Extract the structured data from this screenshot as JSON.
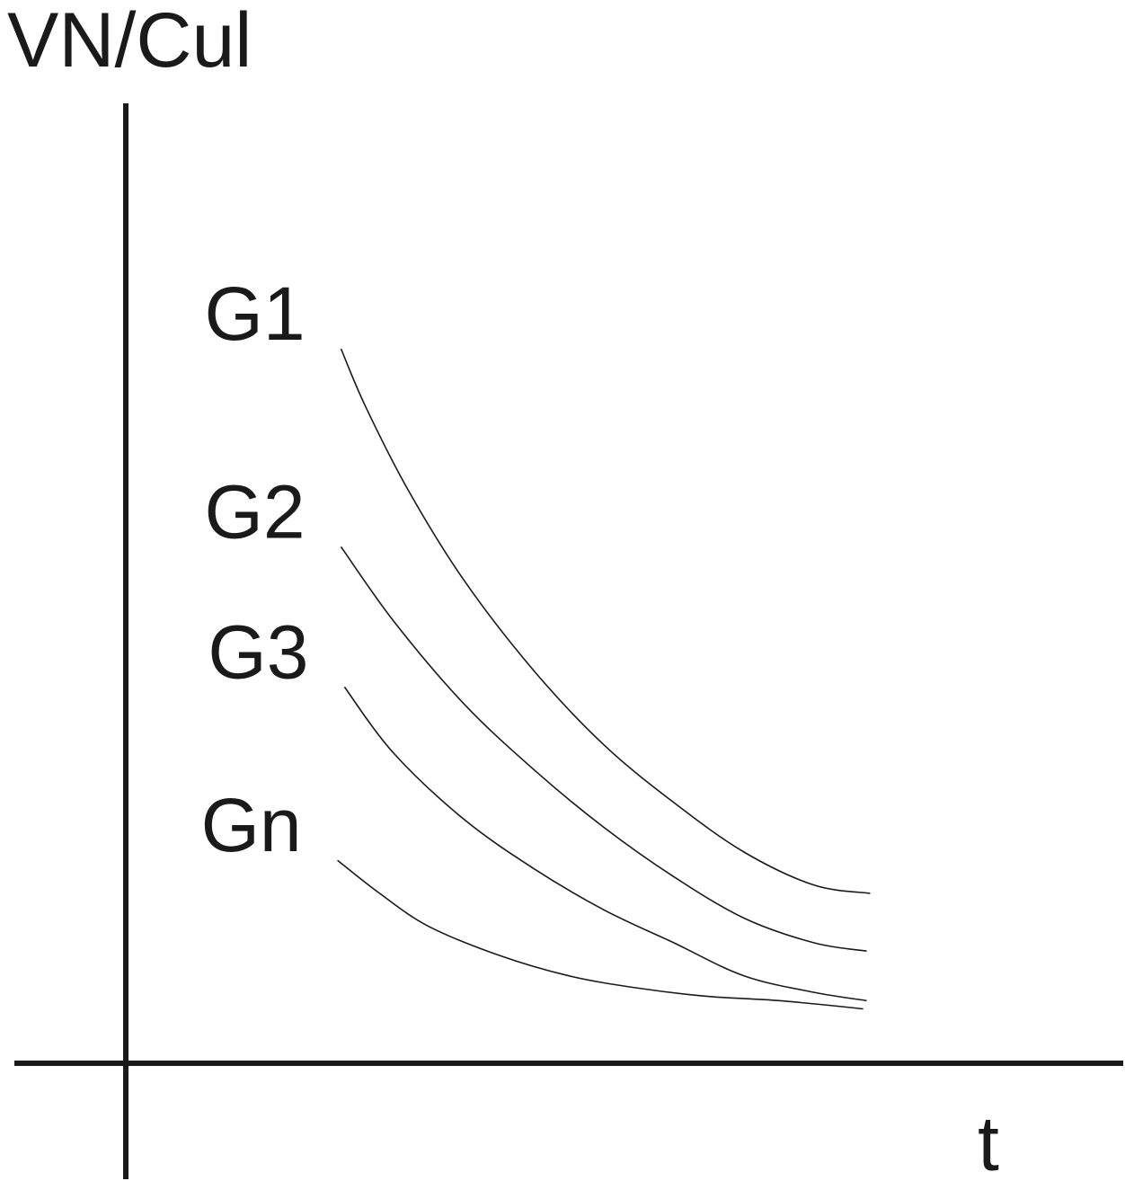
{
  "chart_data": {
    "type": "line",
    "title": "",
    "ylabel": "VN/Cul",
    "xlabel": "t",
    "grid": false,
    "xlim": [
      0,
      10
    ],
    "ylim": [
      0,
      10
    ],
    "series": [
      {
        "name": "G1",
        "x": [
          0.25,
          0.6,
          1.2,
          2.0,
          3.0,
          4.0,
          5.0,
          6.0,
          7.0,
          7.8
        ],
        "y": [
          8.3,
          7.6,
          6.6,
          5.5,
          4.4,
          3.5,
          2.8,
          2.2,
          1.8,
          1.7
        ]
      },
      {
        "name": "G2",
        "x": [
          0.25,
          1.0,
          2.0,
          3.0,
          4.0,
          5.0,
          6.0,
          7.0,
          7.75
        ],
        "y": [
          5.9,
          5.0,
          4.0,
          3.2,
          2.5,
          1.9,
          1.4,
          1.1,
          1.0
        ]
      },
      {
        "name": "G3",
        "x": [
          0.3,
          1.0,
          2.0,
          3.0,
          4.0,
          5.0,
          6.0,
          7.0,
          7.75
        ],
        "y": [
          4.2,
          3.4,
          2.6,
          2.0,
          1.5,
          1.1,
          0.7,
          0.5,
          0.4
        ]
      },
      {
        "name": "Gn",
        "x": [
          0.2,
          0.8,
          1.5,
          2.5,
          3.5,
          4.5,
          5.5,
          6.5,
          7.7
        ],
        "y": [
          2.1,
          1.7,
          1.3,
          0.95,
          0.7,
          0.55,
          0.45,
          0.4,
          0.3
        ]
      }
    ]
  }
}
